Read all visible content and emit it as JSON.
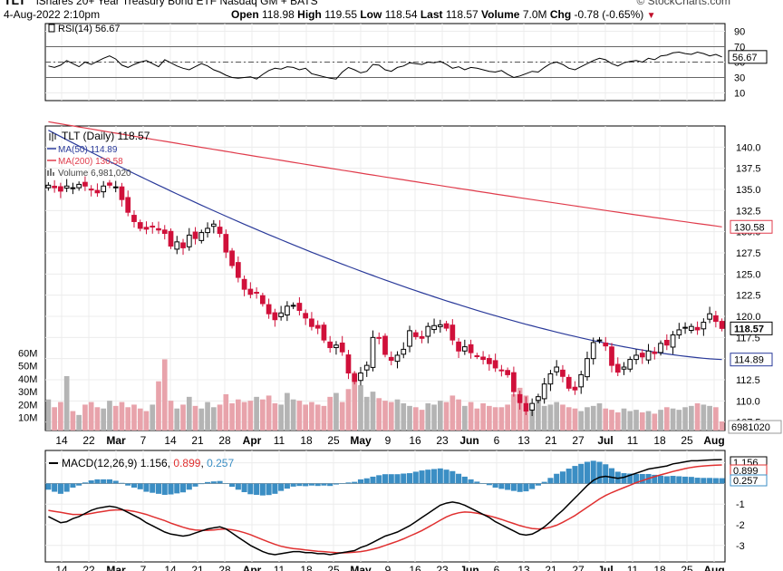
{
  "header": {
    "symbol": "TLT",
    "subtitle": "iShares 20+ Year Treasury Bond ETF  Nasdaq GM + BATS",
    "branding": "© StockCharts.com",
    "datetime": "4-Aug-2022 2:10pm",
    "quote": [
      {
        "label": "Open",
        "value": "118.98"
      },
      {
        "label": "High",
        "value": "119.55"
      },
      {
        "label": "Low",
        "value": "118.54"
      },
      {
        "label": "Last",
        "value": "118.57"
      },
      {
        "label": "Volume",
        "value": "7.0M"
      },
      {
        "label": "Chg",
        "value": "-0.78 (-0.65%)"
      }
    ],
    "chg_arrow": "down-arrow-icon"
  },
  "colors": {
    "up": "#000000",
    "down": "#d0103a",
    "ma50": "#2a3a9a",
    "ma200": "#e03c4c",
    "volume_up": "#b4b4b4",
    "volume_down": "#e8a3ab",
    "macd_line": "#000000",
    "signal_line": "#e03030",
    "histogram": "#3b8ec4",
    "rsi_line": "#000000"
  },
  "chart_data": {
    "type": "candlestick",
    "title": "TLT (Daily) 118.57",
    "price_axis": {
      "ylim": [
        106.5,
        142.5
      ],
      "ticks": [
        "140.0",
        "137.5",
        "135.0",
        "132.5",
        "130.0",
        "127.5",
        "125.0",
        "122.5",
        "120.0",
        "117.5",
        "115.0",
        "112.5",
        "110.0",
        "107.5"
      ]
    },
    "legend": [
      {
        "label": "TLT (Daily)",
        "value": "118.57",
        "icon": "candlestick-icon"
      },
      {
        "label": "MA(50)",
        "value": "114.89"
      },
      {
        "label": "MA(200)",
        "value": "130.58"
      },
      {
        "label": "Volume",
        "value": "6,981,020",
        "icon": "volume-bars-icon"
      }
    ],
    "price_tags": {
      "last": "118.57",
      "ma50": "114.89",
      "ma200": "130.58",
      "volume": "6981020"
    },
    "x_labels": [
      "14",
      "22",
      "Mar",
      "7",
      "14",
      "21",
      "28",
      "Apr",
      "11",
      "18",
      "25",
      "May",
      "9",
      "16",
      "23",
      "Jun",
      "6",
      "13",
      "21",
      "27",
      "Jul",
      "11",
      "18",
      "25",
      "Aug"
    ],
    "x_label_bold": [
      "Mar",
      "Apr",
      "May",
      "Jun",
      "Jul",
      "Aug"
    ],
    "closes": [
      135.5,
      135.2,
      134.8,
      135.4,
      135.2,
      135.6,
      135.4,
      135.0,
      134.6,
      135.4,
      135.5,
      135.3,
      133.8,
      132.3,
      131.2,
      130.4,
      130.3,
      130.6,
      130.2,
      129.8,
      128.3,
      128.8,
      128.1,
      129.6,
      129.2,
      129.9,
      130.4,
      130.9,
      129.8,
      127.6,
      126.0,
      124.6,
      123.2,
      122.6,
      122.8,
      121.5,
      120.3,
      119.6,
      120.4,
      121.2,
      121.3,
      120.7,
      119.8,
      118.8,
      118.6,
      117.2,
      116.3,
      116.6,
      115.8,
      113.3,
      112.3,
      113.3,
      114.2,
      117.5,
      117.4,
      115.5,
      114.8,
      115.4,
      116.1,
      118.3,
      117.6,
      117.4,
      118.8,
      118.9,
      119.0,
      118.6,
      117.2,
      115.9,
      116.4,
      115.7,
      115.3,
      114.9,
      114.4,
      113.9,
      113.6,
      113.1,
      111.1,
      109.8,
      108.8,
      109.7,
      110.5,
      112.0,
      113.2,
      114.0,
      112.9,
      111.5,
      111.3,
      113.1,
      115.0,
      116.9,
      117.2,
      116.5,
      114.2,
      113.4,
      114.0,
      114.9,
      115.4,
      115.2,
      115.9,
      115.6,
      116.8,
      116.6,
      117.8,
      118.4,
      118.7,
      118.8,
      118.4,
      119.3,
      120.3,
      119.4,
      118.57
    ],
    "ma50": {
      "start": 142.0,
      "end": 114.89
    },
    "ma200": {
      "start": 143.0,
      "end": 130.58
    },
    "volume": {
      "ticks": [
        "60M",
        "50M",
        "40M",
        "30M",
        "20M",
        "10M"
      ],
      "ylim_millions": [
        0,
        70
      ],
      "values_millions": [
        24,
        18,
        22,
        42,
        15,
        12,
        20,
        22,
        18,
        17,
        23,
        19,
        22,
        18,
        20,
        17,
        15,
        20,
        38,
        55,
        23,
        17,
        20,
        26,
        19,
        17,
        22,
        18,
        20,
        28,
        21,
        24,
        22,
        23,
        26,
        24,
        27,
        21,
        20,
        29,
        24,
        23,
        20,
        22,
        20,
        19,
        26,
        29,
        22,
        32,
        45,
        35,
        26,
        30,
        25,
        23,
        22,
        24,
        21,
        19,
        18,
        16,
        21,
        20,
        23,
        22,
        27,
        24,
        19,
        22,
        17,
        21,
        19,
        18,
        18,
        20,
        28,
        33,
        27,
        21,
        24,
        19,
        20,
        22,
        20,
        18,
        17,
        15,
        18,
        19,
        21,
        17,
        16,
        14,
        17,
        15,
        16,
        14,
        15,
        13,
        16,
        18,
        17,
        16,
        18,
        19,
        21,
        20,
        19,
        18,
        7
      ]
    },
    "rsi": {
      "label": "RSI(14)",
      "value": "56.67",
      "ticks": [
        "90",
        "70",
        "50",
        "30",
        "10"
      ],
      "ylim": [
        0,
        100
      ],
      "overbought": 70,
      "oversold": 30,
      "centerline": 50,
      "values": [
        45,
        43,
        46,
        52,
        48,
        44,
        50,
        47,
        51,
        55,
        58,
        54,
        46,
        43,
        47,
        50,
        52,
        48,
        44,
        53,
        49,
        45,
        42,
        40,
        44,
        48,
        45,
        40,
        37,
        33,
        30,
        29,
        30,
        31,
        28,
        34,
        39,
        42,
        41,
        44,
        43,
        40,
        42,
        35,
        33,
        31,
        29,
        28,
        37,
        43,
        40,
        36,
        38,
        47,
        46,
        40,
        38,
        43,
        45,
        49,
        48,
        47,
        50,
        49,
        51,
        47,
        42,
        44,
        40,
        43,
        42,
        40,
        38,
        37,
        39,
        34,
        30,
        32,
        35,
        38,
        37,
        43,
        48,
        50,
        47,
        42,
        40,
        44,
        48,
        52,
        55,
        53,
        48,
        45,
        49,
        51,
        52,
        50,
        55,
        53,
        58,
        59,
        62,
        63,
        61,
        60,
        63,
        61,
        58,
        60,
        56.67
      ]
    },
    "macd": {
      "label": "MACD(12,26,9)",
      "values_text": [
        "1.156",
        "0.899",
        "0.257"
      ],
      "ticks": [
        "1",
        "-1",
        "-2",
        "-3"
      ],
      "ylim": [
        -3.8,
        1.6
      ],
      "tags": [
        "1.156",
        "0.899",
        "0.257"
      ],
      "macd": [
        -1.6,
        -1.75,
        -1.9,
        -1.85,
        -1.7,
        -1.6,
        -1.45,
        -1.3,
        -1.2,
        -1.15,
        -1.1,
        -1.15,
        -1.25,
        -1.4,
        -1.55,
        -1.7,
        -1.9,
        -2.05,
        -2.2,
        -2.35,
        -2.45,
        -2.5,
        -2.55,
        -2.5,
        -2.4,
        -2.3,
        -2.2,
        -2.15,
        -2.1,
        -2.2,
        -2.4,
        -2.6,
        -2.8,
        -3.0,
        -3.15,
        -3.3,
        -3.4,
        -3.45,
        -3.4,
        -3.35,
        -3.3,
        -3.3,
        -3.35,
        -3.35,
        -3.4,
        -3.4,
        -3.45,
        -3.4,
        -3.35,
        -3.3,
        -3.25,
        -3.1,
        -3.0,
        -2.85,
        -2.7,
        -2.55,
        -2.45,
        -2.35,
        -2.2,
        -2.05,
        -1.85,
        -1.65,
        -1.45,
        -1.25,
        -1.05,
        -0.95,
        -0.9,
        -0.95,
        -1.05,
        -1.2,
        -1.35,
        -1.5,
        -1.65,
        -1.85,
        -2.0,
        -2.15,
        -2.3,
        -2.45,
        -2.5,
        -2.45,
        -2.3,
        -2.1,
        -1.85,
        -1.55,
        -1.3,
        -1.0,
        -0.7,
        -0.4,
        -0.1,
        0.15,
        0.3,
        0.35,
        0.3,
        0.25,
        0.3,
        0.4,
        0.5,
        0.6,
        0.7,
        0.75,
        0.8,
        0.85,
        0.95,
        1.0,
        1.05,
        1.1,
        1.1,
        1.12,
        1.14,
        1.15,
        1.156
      ],
      "signal": [
        -1.3,
        -1.35,
        -1.4,
        -1.45,
        -1.5,
        -1.5,
        -1.5,
        -1.45,
        -1.4,
        -1.35,
        -1.3,
        -1.28,
        -1.28,
        -1.3,
        -1.35,
        -1.42,
        -1.5,
        -1.6,
        -1.7,
        -1.8,
        -1.92,
        -2.02,
        -2.12,
        -2.2,
        -2.25,
        -2.27,
        -2.27,
        -2.25,
        -2.22,
        -2.2,
        -2.24,
        -2.3,
        -2.38,
        -2.48,
        -2.6,
        -2.72,
        -2.84,
        -2.95,
        -3.04,
        -3.1,
        -3.15,
        -3.18,
        -3.22,
        -3.25,
        -3.28,
        -3.3,
        -3.33,
        -3.35,
        -3.36,
        -3.35,
        -3.33,
        -3.3,
        -3.25,
        -3.18,
        -3.1,
        -3.0,
        -2.9,
        -2.8,
        -2.68,
        -2.55,
        -2.42,
        -2.28,
        -2.12,
        -1.95,
        -1.78,
        -1.62,
        -1.5,
        -1.42,
        -1.38,
        -1.4,
        -1.44,
        -1.5,
        -1.57,
        -1.65,
        -1.74,
        -1.84,
        -1.94,
        -2.04,
        -2.12,
        -2.18,
        -2.2,
        -2.18,
        -2.12,
        -2.02,
        -1.88,
        -1.72,
        -1.55,
        -1.35,
        -1.15,
        -0.95,
        -0.75,
        -0.58,
        -0.44,
        -0.32,
        -0.2,
        -0.08,
        0.04,
        0.14,
        0.24,
        0.33,
        0.42,
        0.5,
        0.58,
        0.65,
        0.72,
        0.78,
        0.82,
        0.85,
        0.87,
        0.89,
        0.899
      ]
    }
  }
}
